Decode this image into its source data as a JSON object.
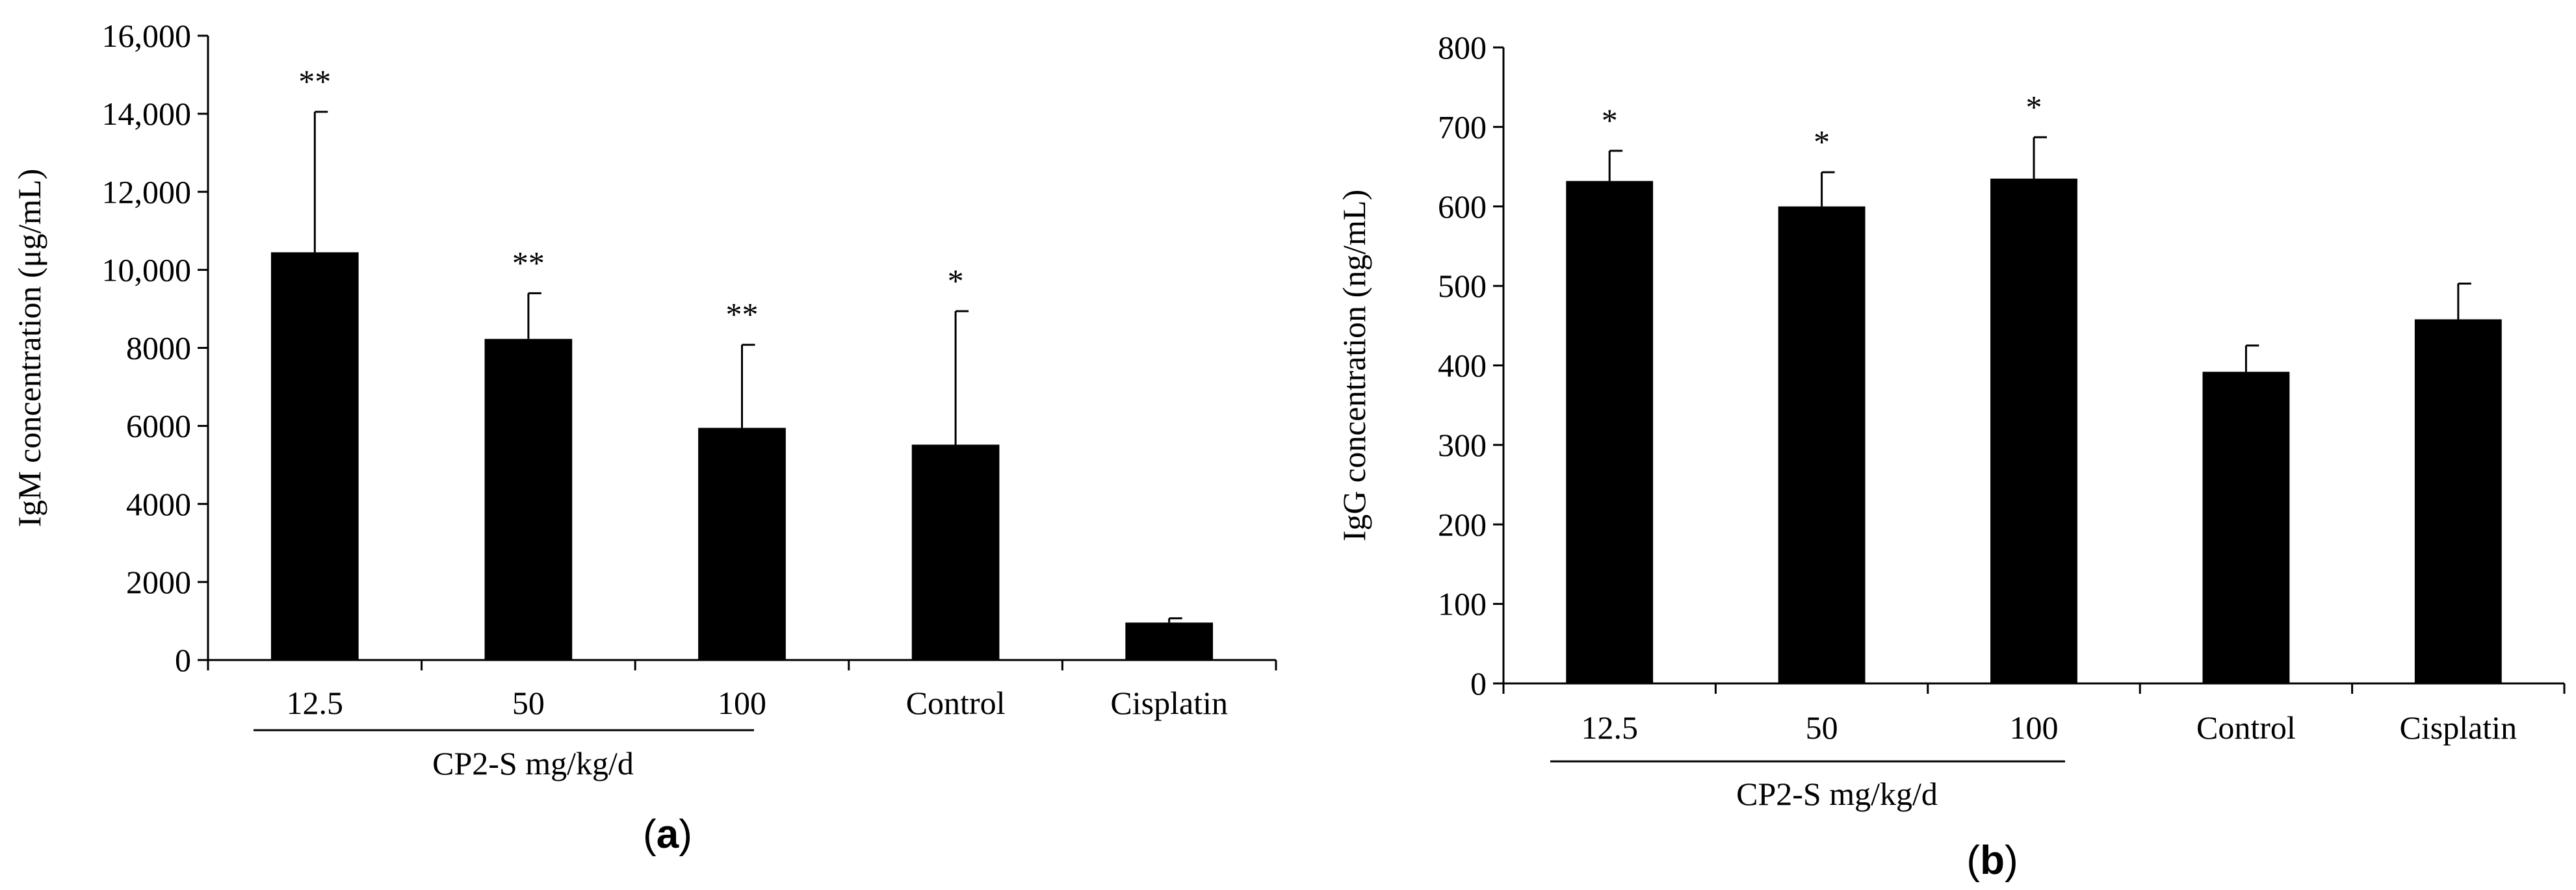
{
  "chart_data": [
    {
      "panel": "a",
      "type": "bar",
      "categories": [
        "12.5",
        "50",
        "100",
        "Control",
        "Cisplatin"
      ],
      "values": [
        10450,
        8230,
        5950,
        5520,
        960
      ],
      "errors": [
        3600,
        1170,
        2130,
        3420,
        110
      ],
      "significance": [
        "**",
        "**",
        "**",
        "*",
        ""
      ],
      "ylabel": "IgM concentration (μg/mL)",
      "ylim": [
        0,
        16000
      ],
      "yticks": [
        0,
        2000,
        4000,
        6000,
        8000,
        10000,
        12000,
        14000,
        16000
      ],
      "ytick_labels": [
        "0",
        "2000",
        "4000",
        "6000",
        "8000",
        "10,000",
        "12,000",
        "14,000",
        "16,000"
      ],
      "group_label": "CP2-S mg/kg/d",
      "bar_color": "#000000",
      "grid": false
    },
    {
      "panel": "b",
      "type": "bar",
      "categories": [
        "12.5",
        "50",
        "100",
        "Control",
        "Cisplatin"
      ],
      "values": [
        632,
        600,
        635,
        392,
        458
      ],
      "errors": [
        38,
        43,
        52,
        33,
        45
      ],
      "significance": [
        "*",
        "*",
        "*",
        "",
        ""
      ],
      "ylabel": "IgG concentration (ng/mL)",
      "ylim": [
        0,
        800
      ],
      "yticks": [
        0,
        100,
        200,
        300,
        400,
        500,
        600,
        700,
        800
      ],
      "ytick_labels": [
        "0",
        "100",
        "200",
        "300",
        "400",
        "500",
        "600",
        "700",
        "800"
      ],
      "group_label": "CP2-S mg/kg/d",
      "bar_color": "#000000",
      "grid": false
    }
  ],
  "panel_labels": {
    "a": {
      "open": "(",
      "letter": "a",
      "close": ")"
    },
    "b": {
      "open": "(",
      "letter": "b",
      "close": ")"
    }
  }
}
